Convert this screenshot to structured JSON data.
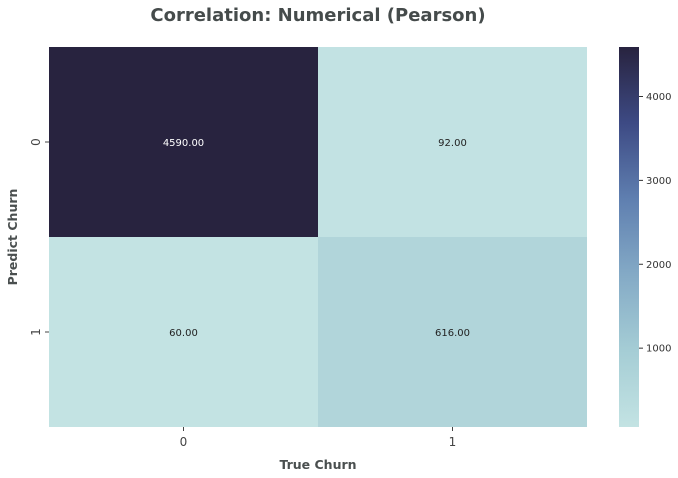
{
  "chart_data": {
    "type": "heatmap",
    "title": "Correlation: Numerical (Pearson)",
    "xlabel": "True Churn",
    "ylabel": "Predict Churn",
    "x_categories": [
      "0",
      "1"
    ],
    "y_categories": [
      "0",
      "1"
    ],
    "values": [
      [
        4590,
        92
      ],
      [
        60,
        616
      ]
    ],
    "cell_labels": [
      [
        "4590.00",
        "92.00"
      ],
      [
        "60.00",
        "616.00"
      ]
    ],
    "color_range": [
      60,
      4590
    ],
    "colorbar": {
      "ticks": [
        1000,
        2000,
        3000,
        4000
      ],
      "tick_labels": [
        "1000",
        "2000",
        "3000",
        "4000"
      ]
    },
    "colors": {
      "low": "#c3e3e3",
      "stops": [
        "#c3e3e3",
        "#a5cdd5",
        "#84aac6",
        "#5f7fb0",
        "#3d4a84",
        "#28233f"
      ],
      "label_dark": "#222222",
      "label_light": "#ffffff"
    }
  }
}
